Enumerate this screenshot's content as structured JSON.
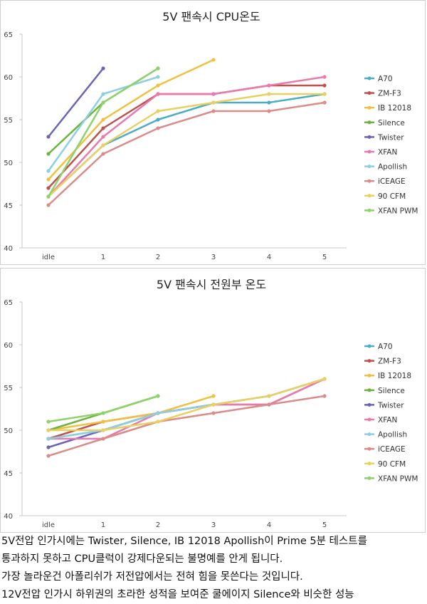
{
  "colors": {
    "A70": "#4BACC6",
    "ZM-F3": "#C0504D",
    "IB 12018": "#F0C040",
    "Silence": "#6DB33F",
    "Twister": "#6B63B5",
    "XFAN": "#E87AAE",
    "Apollish": "#8CCFE0",
    "iCEAGE": "#D98C8A",
    "90 CFM": "#EAD060",
    "XFAN PWM": "#8ED26A"
  },
  "chart_data": [
    {
      "type": "line",
      "title": "5V 팬속시 CPU온도",
      "categories": [
        "idle",
        "1",
        "2",
        "3",
        "4",
        "5"
      ],
      "yticks": [
        "40",
        "45",
        "50",
        "55",
        "60",
        "65"
      ],
      "ylim": [
        40,
        65
      ],
      "legend_position": "right",
      "series": [
        {
          "name": "A70",
          "values": [
            46,
            52,
            55,
            57,
            57,
            58
          ]
        },
        {
          "name": "ZM-F3",
          "values": [
            47,
            54,
            58,
            58,
            59,
            59
          ]
        },
        {
          "name": "IB 12018",
          "values": [
            48,
            55,
            59,
            62,
            null,
            null
          ]
        },
        {
          "name": "Silence",
          "values": [
            51,
            57,
            61,
            null,
            null,
            null
          ]
        },
        {
          "name": "Twister",
          "values": [
            53,
            61,
            null,
            null,
            null,
            null
          ]
        },
        {
          "name": "XFAN",
          "values": [
            46,
            53,
            58,
            58,
            59,
            60
          ]
        },
        {
          "name": "Apollish",
          "values": [
            49,
            58,
            60,
            null,
            null,
            null
          ]
        },
        {
          "name": "iCEAGE",
          "values": [
            45,
            51,
            54,
            56,
            56,
            57
          ]
        },
        {
          "name": "90 CFM",
          "values": [
            46,
            52,
            56,
            57,
            58,
            58
          ]
        },
        {
          "name": "XFAN PWM",
          "values": [
            46,
            57,
            61,
            null,
            null,
            null
          ]
        }
      ]
    },
    {
      "type": "line",
      "title": "5V 팬속시 전원부 온도",
      "categories": [
        "idle",
        "1",
        "2",
        "3",
        "4",
        "5"
      ],
      "yticks": [
        "40",
        "45",
        "50",
        "55",
        "60",
        "65"
      ],
      "ylim": [
        40,
        65
      ],
      "legend_position": "right",
      "series": [
        {
          "name": "A70",
          "values": [
            49,
            50,
            52,
            53,
            54,
            56
          ]
        },
        {
          "name": "ZM-F3",
          "values": [
            49,
            51,
            52,
            53,
            53,
            56
          ]
        },
        {
          "name": "IB 12018",
          "values": [
            50,
            51,
            52,
            54,
            null,
            null
          ]
        },
        {
          "name": "Silence",
          "values": [
            50,
            52,
            54,
            null,
            null,
            null
          ]
        },
        {
          "name": "Twister",
          "values": [
            48,
            50,
            52,
            null,
            null,
            null
          ]
        },
        {
          "name": "XFAN",
          "values": [
            49,
            49,
            52,
            53,
            53,
            56
          ]
        },
        {
          "name": "Apollish",
          "values": [
            49,
            50,
            52,
            53,
            54,
            56
          ]
        },
        {
          "name": "iCEAGE",
          "values": [
            47,
            49,
            51,
            52,
            53,
            54
          ]
        },
        {
          "name": "90 CFM",
          "values": [
            50,
            50,
            51,
            53,
            54,
            56
          ]
        },
        {
          "name": "XFAN PWM",
          "values": [
            51,
            52,
            54,
            null,
            null,
            null
          ]
        }
      ]
    }
  ],
  "article": {
    "lines": [
      "5V전압 인가시에는 Twister, Silence, IB 12018 Apollish이 Prime 5분 테스트를",
      "통과하지 못하고 CPU클럭이 강제다운되는 불명예를 안게 됩니다.",
      "가장 놀라운건 아폴리쉬가 저전압에서는 전혀 힘을 못쓴다는 것입니다.",
      "12V전압 인가시 하위권의 초라한 성적을 보여준 쿨에이지 Silence와 비슷한 성능"
    ]
  }
}
